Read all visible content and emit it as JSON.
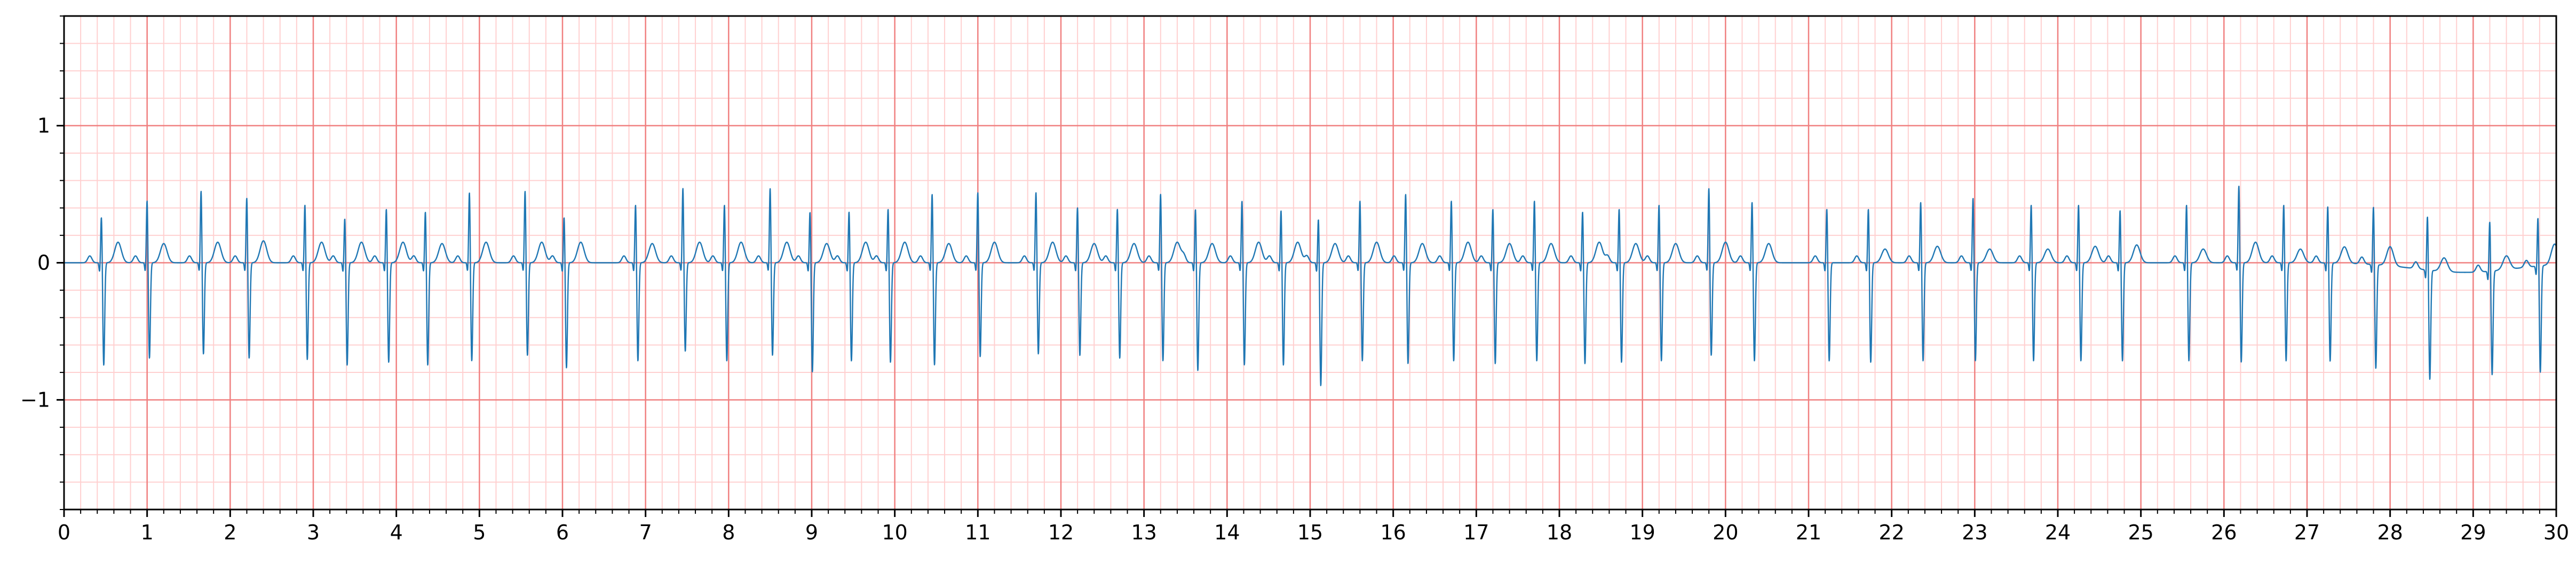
{
  "chart_data": {
    "type": "line",
    "title": "",
    "xlabel": "",
    "ylabel": "",
    "xlim": [
      0,
      30
    ],
    "ylim": [
      -1.8,
      1.8
    ],
    "x_ticks": [
      0,
      1,
      2,
      3,
      4,
      5,
      6,
      7,
      8,
      9,
      10,
      11,
      12,
      13,
      14,
      15,
      16,
      17,
      18,
      19,
      20,
      21,
      22,
      23,
      24,
      25,
      26,
      27,
      28,
      29,
      30
    ],
    "x_tick_labels": [
      "0",
      "1",
      "2",
      "3",
      "4",
      "5",
      "6",
      "7",
      "8",
      "9",
      "10",
      "11",
      "12",
      "13",
      "14",
      "15",
      "16",
      "17",
      "18",
      "19",
      "20",
      "21",
      "22",
      "23",
      "24",
      "25",
      "26",
      "27",
      "28",
      "29",
      "30"
    ],
    "y_ticks": [
      -1,
      0,
      1
    ],
    "y_tick_labels": [
      "−1",
      "0",
      "1"
    ],
    "grid": {
      "major": true,
      "minor": true,
      "major_x_step": 1,
      "major_y_step": 1,
      "minor_x_step": 0.2,
      "minor_y_step": 0.2
    },
    "colors": {
      "trace": "#1f77b4",
      "grid_major": "#f08080",
      "grid_minor": "#ffd0d0",
      "axes": "#000000"
    },
    "series": [
      {
        "name": "",
        "sampling": "beat list: time (s), R-peak amplitude, S-trough amplitude, T-wave amplitude",
        "beats": [
          [
            0.45,
            0.36,
            -0.75,
            0.15
          ],
          [
            1.0,
            0.48,
            -0.7,
            0.14
          ],
          [
            1.65,
            0.55,
            -0.67,
            0.15
          ],
          [
            2.2,
            0.5,
            -0.7,
            0.16
          ],
          [
            2.9,
            0.45,
            -0.71,
            0.15
          ],
          [
            3.38,
            0.35,
            -0.75,
            0.15
          ],
          [
            3.88,
            0.42,
            -0.73,
            0.15
          ],
          [
            4.35,
            0.4,
            -0.75,
            0.14
          ],
          [
            4.88,
            0.54,
            -0.72,
            0.15
          ],
          [
            5.55,
            0.55,
            -0.68,
            0.15
          ],
          [
            6.02,
            0.36,
            -0.77,
            0.15
          ],
          [
            6.88,
            0.45,
            -0.72,
            0.14
          ],
          [
            7.45,
            0.57,
            -0.65,
            0.15
          ],
          [
            7.95,
            0.45,
            -0.72,
            0.15
          ],
          [
            8.5,
            0.57,
            -0.68,
            0.15
          ],
          [
            8.98,
            0.4,
            -0.8,
            0.14
          ],
          [
            9.45,
            0.4,
            -0.72,
            0.15
          ],
          [
            9.92,
            0.42,
            -0.73,
            0.15
          ],
          [
            10.45,
            0.53,
            -0.75,
            0.14
          ],
          [
            11.0,
            0.54,
            -0.69,
            0.15
          ],
          [
            11.7,
            0.54,
            -0.67,
            0.15
          ],
          [
            12.2,
            0.43,
            -0.68,
            0.14
          ],
          [
            12.68,
            0.42,
            -0.7,
            0.14
          ],
          [
            13.2,
            0.53,
            -0.72,
            0.15
          ],
          [
            13.62,
            0.42,
            -0.79,
            0.14
          ],
          [
            14.18,
            0.48,
            -0.75,
            0.15
          ],
          [
            14.65,
            0.41,
            -0.75,
            0.15
          ],
          [
            15.1,
            0.35,
            -0.9,
            0.14
          ],
          [
            15.6,
            0.48,
            -0.72,
            0.15
          ],
          [
            16.15,
            0.53,
            -0.74,
            0.14
          ],
          [
            16.7,
            0.48,
            -0.72,
            0.15
          ],
          [
            17.2,
            0.42,
            -0.74,
            0.14
          ],
          [
            17.7,
            0.48,
            -0.72,
            0.14
          ],
          [
            18.28,
            0.4,
            -0.74,
            0.15
          ],
          [
            18.72,
            0.42,
            -0.73,
            0.14
          ],
          [
            19.2,
            0.45,
            -0.72,
            0.14
          ],
          [
            19.8,
            0.57,
            -0.68,
            0.15
          ],
          [
            20.32,
            0.47,
            -0.72,
            0.14
          ],
          [
            21.22,
            0.42,
            -0.72,
            0.0
          ],
          [
            21.72,
            0.42,
            -0.73,
            0.1
          ],
          [
            22.35,
            0.47,
            -0.72,
            0.12
          ],
          [
            22.98,
            0.5,
            -0.72,
            0.1
          ],
          [
            23.68,
            0.45,
            -0.72,
            0.1
          ],
          [
            24.25,
            0.45,
            -0.72,
            0.12
          ],
          [
            24.75,
            0.41,
            -0.72,
            0.13
          ],
          [
            25.55,
            0.45,
            -0.72,
            0.1
          ],
          [
            26.18,
            0.59,
            -0.73,
            0.15
          ],
          [
            26.72,
            0.45,
            -0.72,
            0.1
          ],
          [
            27.25,
            0.44,
            -0.72,
            0.12
          ],
          [
            27.8,
            0.45,
            -0.76,
            0.14
          ],
          [
            28.45,
            0.42,
            -0.8,
            0.1
          ],
          [
            29.2,
            0.39,
            -0.76,
            0.1
          ],
          [
            29.78,
            0.38,
            -0.78,
            0.15
          ]
        ]
      }
    ]
  }
}
